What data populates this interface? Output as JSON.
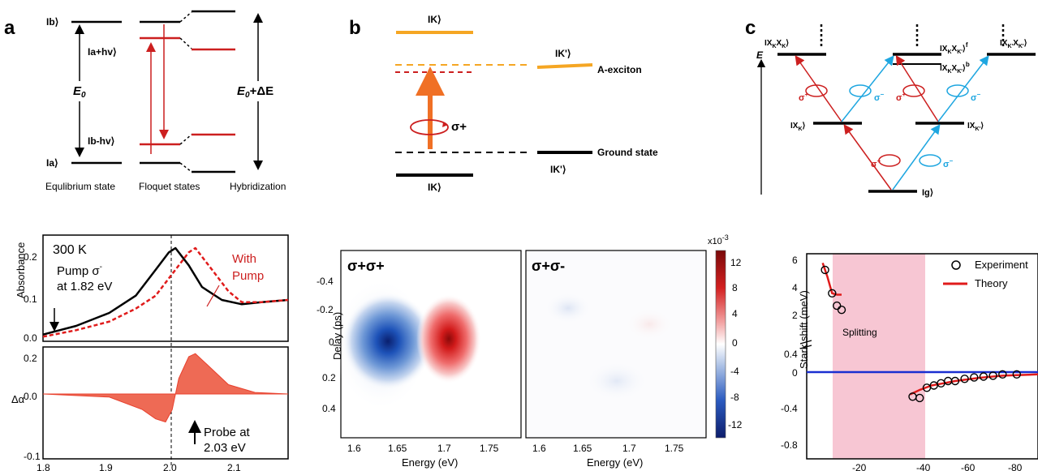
{
  "colors": {
    "red": "#cc1f1f",
    "orange": "#f5a623",
    "orange_arrow": "#f07025",
    "cyan": "#1ea6e0",
    "blue": "#1a2fd1",
    "pink": "#f7c6d3",
    "curve_red": "#e8412e",
    "fill_red": "#ee6a55"
  },
  "panel_a": {
    "label": "a",
    "levels": {
      "ib": "Ib⟩",
      "ia": "Ia⟩",
      "ia_hv": "Ia+hv⟩",
      "ib_hv": "Ib-hv⟩"
    },
    "e0": "E",
    "e0_sub": "0",
    "e0_de": "E",
    "e0_de_sub": "0",
    "e0_de_rest": "+ΔE",
    "captions": [
      "Equlibrium state",
      "Floquet states",
      "Hybridization"
    ]
  },
  "panel_b": {
    "label": "b",
    "k_top": "IK⟩",
    "kp_top": "IK'⟩",
    "k_bottom": "IK⟩",
    "kp_bottom": "IK'⟩",
    "a_exciton": "A-exciton",
    "ground": "Ground state",
    "sigma": "σ+"
  },
  "panel_c": {
    "label": "c",
    "e_axis": "E",
    "xkxk": "IX",
    "xkxk_sub": "K",
    "xkxk_sub2": "X",
    "xkxk_sub3": "K",
    "state_f": "IX",
    "state_b": "IX",
    "state_kpkp": "IX",
    "xk": "IX",
    "xkp": "IX",
    "g": "Ig⟩",
    "sup_f": "f",
    "sup_b": "b",
    "sigma_plus": "σ",
    "sigma_minus": "σ"
  },
  "panel_abs": {
    "temp": "300 K",
    "pump_line1": "Pump σ",
    "pump_line2": "at 1.82 eV",
    "with_pump_1": "With",
    "with_pump_2": "Pump",
    "ylabel": "Absorbance",
    "yticks": [
      "0.2",
      "0.1",
      "0.0"
    ]
  },
  "panel_delta": {
    "ylabel": "Δα",
    "probe_1": "Probe at",
    "probe_2": "2.03 eV",
    "yticks": [
      "0.2",
      "0.0",
      "-0.1"
    ],
    "xticks": [
      "1.8",
      "1.9",
      "2.0",
      "2.1"
    ],
    "xlabel": "Photon energy (eV)"
  },
  "panel_maps": {
    "left_title": "σ+σ+",
    "right_title": "σ+σ-",
    "ylabel": "Delay (ps)",
    "xlabel": "Energy (eV)",
    "yticks": [
      "-0.4",
      "-0.2",
      "0",
      "0.2",
      "0.4"
    ],
    "xticks": [
      "1.6",
      "1.65",
      "1.7",
      "1.75"
    ],
    "colorbar_exp": "x10",
    "colorbar_exp_sup": "-3",
    "colorbar_ticks": [
      "12",
      "8",
      "4",
      "0",
      "-4",
      "-8",
      "-12"
    ]
  },
  "panel_stark": {
    "ylabel": "Stark shift (meV)",
    "xlabel": "Detuning (eV)",
    "yticks": [
      "6",
      "4",
      "2",
      "0.4",
      "0",
      "-0.4",
      "-0.8"
    ],
    "xticks": [
      "-20",
      "-40",
      "-60",
      "-80"
    ],
    "legend_exp": "Experiment",
    "legend_theory": "Theory",
    "splitting": "Splitting"
  },
  "chart_data": [
    {
      "type": "line",
      "title": "",
      "xlabel": "Photon energy (eV)",
      "ylabel": "Absorbance",
      "xlim": [
        1.8,
        2.17
      ],
      "ylim": [
        0.0,
        0.24
      ],
      "series": [
        {
          "name": "",
          "x": [
            1.8,
            1.85,
            1.9,
            1.94,
            1.97,
            1.99,
            2.0,
            2.02,
            2.04,
            2.07,
            2.1,
            2.13,
            2.17
          ],
          "y": [
            0.01,
            0.03,
            0.06,
            0.1,
            0.16,
            0.2,
            0.21,
            0.17,
            0.12,
            0.09,
            0.08,
            0.085,
            0.09
          ]
        },
        {
          "name": "With Pump",
          "x": [
            1.8,
            1.85,
            1.9,
            1.94,
            1.97,
            2.0,
            2.02,
            2.03,
            2.05,
            2.08,
            2.1,
            2.13,
            2.17
          ],
          "y": [
            0.005,
            0.02,
            0.04,
            0.07,
            0.1,
            0.16,
            0.2,
            0.21,
            0.17,
            0.11,
            0.085,
            0.085,
            0.09
          ]
        }
      ]
    },
    {
      "type": "area",
      "title": "",
      "xlabel": "Photon energy (eV)",
      "ylabel": "Δα",
      "xlim": [
        1.8,
        2.17
      ],
      "ylim": [
        -0.12,
        0.24
      ],
      "series": [
        {
          "name": "",
          "x": [
            1.8,
            1.9,
            1.95,
            1.97,
            1.985,
            1.995,
            2.005,
            2.02,
            2.03,
            2.05,
            2.08,
            2.12,
            2.17
          ],
          "y": [
            0.0,
            -0.01,
            -0.05,
            -0.08,
            -0.09,
            -0.05,
            0.05,
            0.12,
            0.13,
            0.09,
            0.03,
            0.005,
            0.0
          ]
        }
      ]
    },
    {
      "type": "heatmap",
      "title": "σ+σ+",
      "xlabel": "Energy (eV)",
      "ylabel": "Delay (ps)",
      "xlim": [
        1.585,
        1.77
      ],
      "ylim": [
        -0.55,
        0.55
      ],
      "zlim": [
        -12,
        12
      ],
      "features": [
        {
          "x": 1.655,
          "y": 0.0,
          "z": -12
        },
        {
          "x": 1.7,
          "y": 0.0,
          "z": 12
        }
      ]
    },
    {
      "type": "heatmap",
      "title": "σ+σ-",
      "xlabel": "Energy (eV)",
      "ylabel": "Delay (ps)",
      "xlim": [
        1.585,
        1.77
      ],
      "ylim": [
        -0.55,
        0.55
      ],
      "zlim": [
        -12,
        12
      ],
      "features": [
        {
          "x": 1.68,
          "y": 0.0,
          "z": 0
        }
      ]
    },
    {
      "type": "scatter",
      "title": "",
      "xlabel": "Detuning (eV)",
      "ylabel": "Stark shift (meV)",
      "series": [
        {
          "name": "Experiment",
          "x": [
            -5,
            -8,
            -10,
            -12,
            -42,
            -45,
            -48,
            -51,
            -54,
            -57,
            -60,
            -64,
            -68,
            -72,
            -76,
            -80,
            -86
          ],
          "y": [
            5.3,
            3.6,
            2.7,
            2.4,
            -0.55,
            -0.58,
            -0.35,
            -0.3,
            -0.25,
            -0.2,
            -0.2,
            -0.15,
            -0.12,
            -0.1,
            -0.08,
            -0.05,
            -0.05
          ]
        },
        {
          "name": "Theory",
          "x": [
            -4,
            -6,
            -8,
            -10,
            -12,
            -41,
            -45,
            -50,
            -55,
            -60,
            -70,
            -80,
            -95
          ],
          "y": [
            5.8,
            4.8,
            3.6,
            3.5,
            3.5,
            -0.5,
            -0.4,
            -0.3,
            -0.25,
            -0.2,
            -0.13,
            -0.08,
            -0.05
          ]
        }
      ],
      "shaded_region": {
        "label": "Splitting",
        "x": [
          -12,
          -40
        ]
      },
      "reference_line": {
        "y": 0
      }
    }
  ]
}
